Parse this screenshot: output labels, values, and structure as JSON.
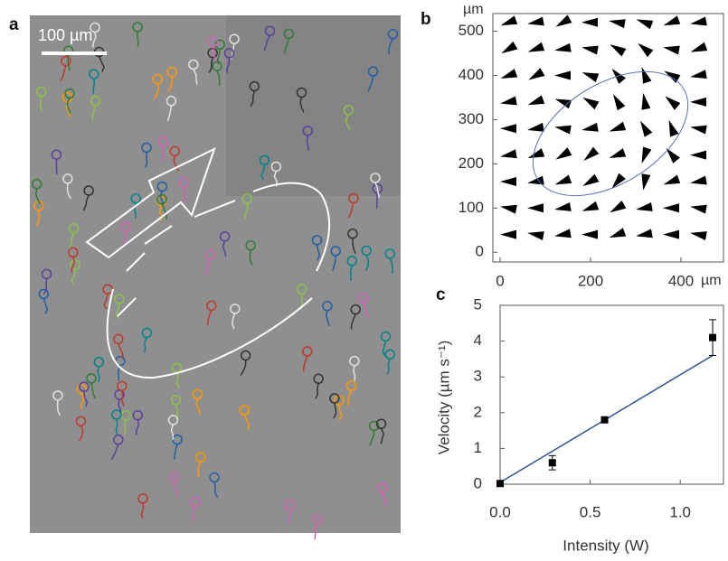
{
  "chart_data": [
    {
      "type": "image",
      "panel_label": "a",
      "scale_bar_label": "100 µm"
    },
    {
      "type": "quiver",
      "panel_label": "b",
      "x_unit": "µm",
      "y_unit": "µm",
      "xlim": [
        -16,
        494
      ],
      "ylim": [
        -22,
        540
      ],
      "xticks": [
        0,
        200,
        400
      ],
      "yticks": [
        0,
        100,
        200,
        300,
        400,
        500
      ],
      "grid_x": [
        20,
        80,
        140,
        200,
        260,
        320,
        380,
        440
      ],
      "grid_y": [
        520,
        460,
        400,
        340,
        280,
        220,
        160,
        100,
        40
      ],
      "angles": [
        [
          200,
          190,
          210,
          180,
          170,
          160,
          200,
          190
        ],
        [
          210,
          200,
          190,
          170,
          150,
          140,
          170,
          200
        ],
        [
          200,
          210,
          180,
          160,
          130,
          110,
          150,
          190
        ],
        [
          190,
          200,
          160,
          150,
          120,
          100,
          140,
          180
        ],
        [
          180,
          190,
          170,
          190,
          200,
          120,
          110,
          170
        ],
        [
          190,
          200,
          210,
          220,
          200,
          250,
          130,
          180
        ],
        [
          180,
          190,
          200,
          210,
          230,
          260,
          200,
          190
        ],
        [
          170,
          180,
          190,
          200,
          210,
          190,
          180,
          170
        ],
        [
          180,
          170,
          190,
          180,
          200,
          190,
          180,
          170
        ]
      ],
      "color": "#000000"
    },
    {
      "type": "scatter",
      "panel_label": "c",
      "x_label": "Intensity (W)",
      "y_label": "Velocity (µm s⁻¹)",
      "xlim": [
        0,
        1.24
      ],
      "ylim": [
        0,
        5
      ],
      "xticks": [
        {
          "value": 0,
          "label": "0.0"
        },
        {
          "value": 0.5,
          "label": "0.5"
        },
        {
          "value": 1,
          "label": "1.0"
        }
      ],
      "yticks": [
        0,
        1,
        2,
        3,
        4,
        5
      ],
      "x": [
        0,
        0.29,
        0.58,
        1.18
      ],
      "values": [
        0.02,
        0.6,
        1.8,
        4.1
      ],
      "errors": [
        0.05,
        0.2,
        0.08,
        0.5
      ],
      "color": "#000000",
      "fit": {
        "x": [
          0,
          1.18
        ],
        "values": [
          0.05,
          3.6
        ],
        "color": "#2f5597"
      }
    }
  ]
}
